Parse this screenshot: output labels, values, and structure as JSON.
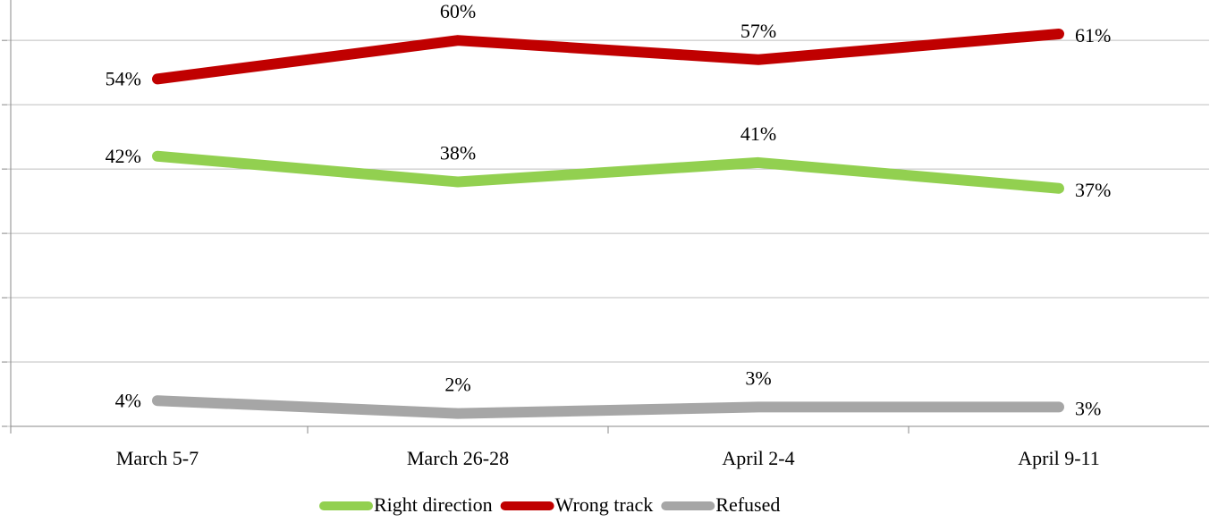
{
  "chart_data": {
    "type": "line",
    "categories": [
      "March 5-7",
      "March 26-28",
      "April 2-4",
      "April 9-11"
    ],
    "series": [
      {
        "name": "Right direction",
        "color": "#92d050",
        "values": [
          42,
          38,
          41,
          37
        ],
        "value_labels": [
          "42%",
          "38%",
          "41%",
          "37%"
        ]
      },
      {
        "name": "Wrong track",
        "color": "#c00000",
        "values": [
          54,
          60,
          57,
          61
        ],
        "value_labels": [
          "54%",
          "60%",
          "57%",
          "61%"
        ]
      },
      {
        "name": "Refused",
        "color": "#a6a6a6",
        "values": [
          4,
          2,
          3,
          3
        ],
        "value_labels": [
          "4%",
          "2%",
          "3%",
          "3%"
        ]
      }
    ],
    "ylim": [
      0,
      66
    ],
    "yticks": [
      0,
      10,
      20,
      30,
      40,
      50,
      60
    ],
    "grid": true,
    "legend": "bottom"
  }
}
